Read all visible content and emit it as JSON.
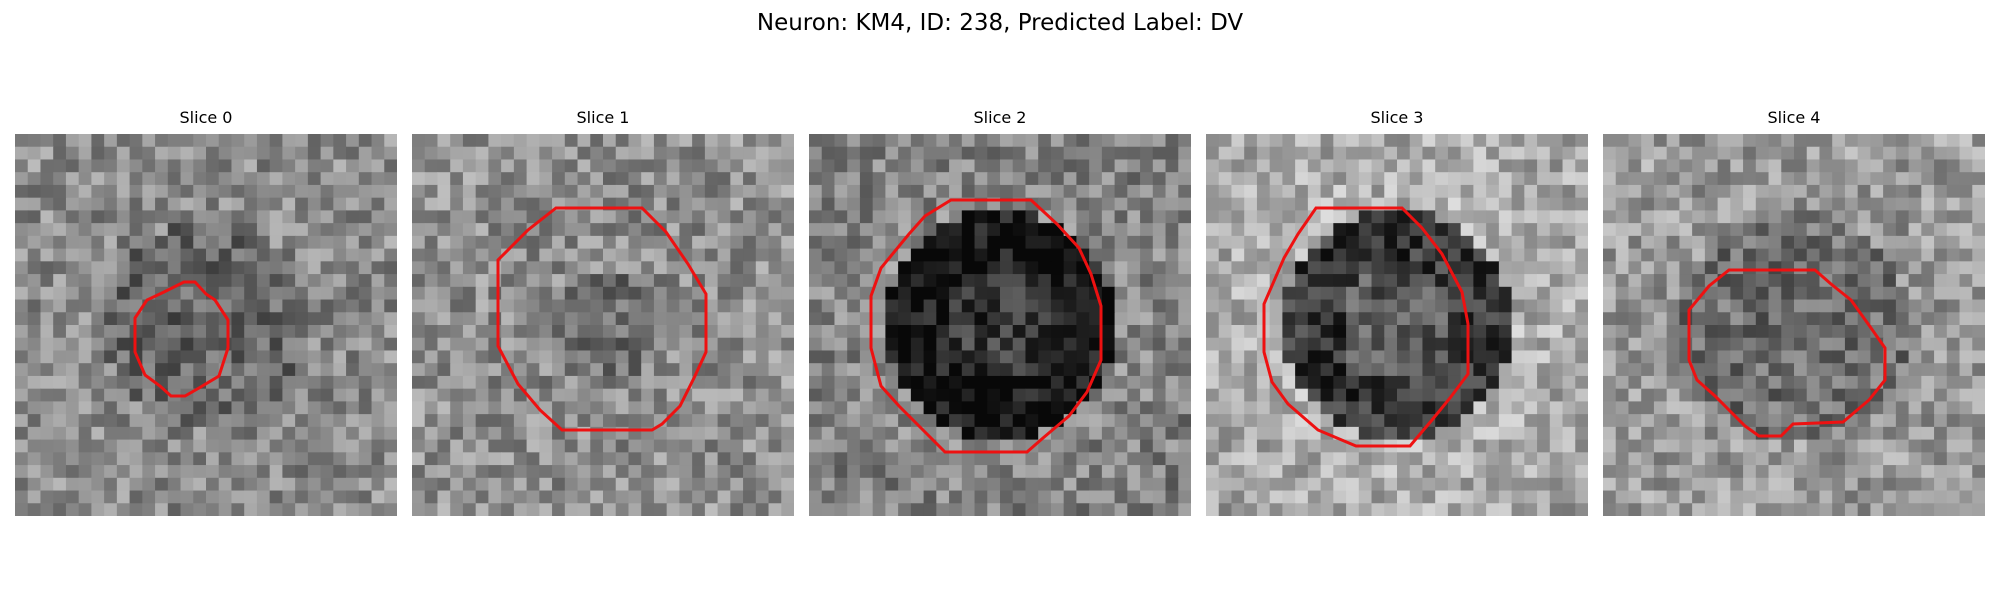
{
  "figure": {
    "title": "Neuron: KM4, ID: 238, Predicted Label: DV",
    "outline_color": "#ee1111"
  },
  "slices": [
    {
      "title": "Slice 0"
    },
    {
      "title": "Slice 1"
    },
    {
      "title": "Slice 2"
    },
    {
      "title": "Slice 3"
    },
    {
      "title": "Slice 4"
    }
  ]
}
